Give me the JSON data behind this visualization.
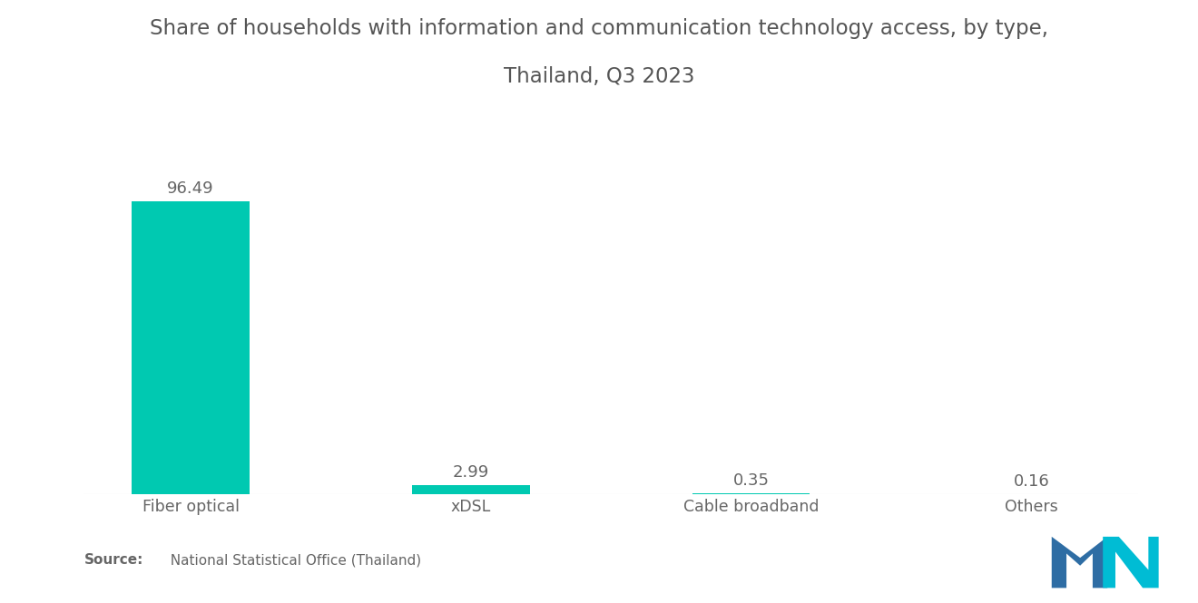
{
  "title_line1": "Share of households with information and communication technology access, by type,",
  "title_line2": "Thailand, Q3 2023",
  "categories": [
    "Fiber optical",
    "xDSL",
    "Cable broadband",
    "Others"
  ],
  "values": [
    96.49,
    2.99,
    0.35,
    0.16
  ],
  "bar_color": "#00C9B1",
  "label_color": "#666666",
  "title_color": "#555555",
  "source_bold": "Source:",
  "source_rest": "  National Statistical Office (Thailand)",
  "background_color": "#ffffff",
  "bar_width": 0.42,
  "ylim": [
    0,
    115
  ],
  "title_fontsize": 16.5,
  "label_fontsize": 12.5,
  "value_fontsize": 13,
  "source_fontsize": 11,
  "logo_blue": "#2E6DA4",
  "logo_teal": "#00BCD4"
}
